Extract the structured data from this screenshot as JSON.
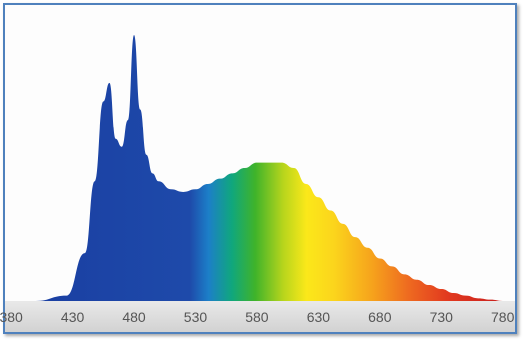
{
  "chart_data": {
    "type": "area",
    "title": "",
    "xlabel": "",
    "ylabel": "",
    "xlim": [
      375,
      790
    ],
    "ylim": [
      0,
      1
    ],
    "x_ticks": [
      "380",
      "430",
      "480",
      "530",
      "580",
      "630",
      "680",
      "730",
      "780"
    ],
    "x_tick_values": [
      380,
      430,
      480,
      530,
      580,
      630,
      680,
      730,
      780
    ],
    "grid": false,
    "fill": "visible-spectrum-gradient",
    "series": [
      {
        "x": [
          400,
          425,
          440,
          448,
          455,
          460,
          465,
          470,
          475,
          480,
          485,
          490,
          495,
          500,
          510,
          520,
          530,
          540,
          550,
          560,
          570,
          580,
          590,
          600,
          610,
          620,
          630,
          640,
          650,
          660,
          670,
          680,
          690,
          700,
          710,
          720,
          730,
          740,
          750,
          760,
          770,
          780
        ],
        "values": [
          0.0,
          0.02,
          0.18,
          0.45,
          0.75,
          0.82,
          0.61,
          0.58,
          0.68,
          1.0,
          0.72,
          0.55,
          0.48,
          0.45,
          0.42,
          0.41,
          0.42,
          0.44,
          0.46,
          0.48,
          0.5,
          0.52,
          0.52,
          0.52,
          0.5,
          0.44,
          0.39,
          0.34,
          0.29,
          0.24,
          0.2,
          0.16,
          0.13,
          0.1,
          0.08,
          0.06,
          0.045,
          0.03,
          0.02,
          0.01,
          0.005,
          0.0
        ]
      }
    ]
  }
}
